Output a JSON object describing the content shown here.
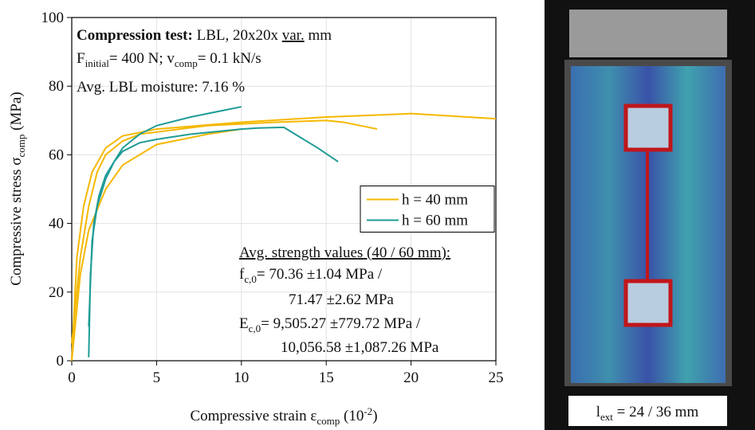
{
  "chart_data": {
    "type": "line",
    "ylabel": {
      "main": "Compressive stress σ",
      "sub": "comp",
      "unit": " (MPa)"
    },
    "xlabel": {
      "main": "Compressive strain ε",
      "sub": "comp",
      "unit": " (10",
      "sup": "-2",
      "close": ")"
    },
    "xlim": [
      0,
      25
    ],
    "xticks": [
      0,
      5,
      10,
      15,
      20,
      25
    ],
    "ylim": [
      0,
      100
    ],
    "yticks": [
      0,
      20,
      40,
      60,
      80,
      100
    ],
    "grid": true,
    "legend": "center right",
    "series": [
      {
        "name": "h = 40 mm",
        "color": "#f5b800",
        "curves": [
          {
            "x": [
              0,
              0.3,
              0.7,
              1.2,
              2,
              3,
              5,
              10,
              15,
              20,
              25
            ],
            "values": [
              0,
              30,
              45,
              55,
              62,
              65.5,
              67.5,
              69.5,
              71,
              72,
              70.5
            ]
          },
          {
            "x": [
              0,
              0.5,
              1,
              1.5,
              2,
              3,
              4,
              8,
              12,
              15,
              16,
              18
            ],
            "values": [
              5,
              30,
              45,
              55,
              60,
              64,
              66,
              68.5,
              69.5,
              70,
              69.5,
              67.5
            ]
          },
          {
            "x": [
              0,
              0.5,
              1,
              2,
              3,
              5,
              8,
              10
            ],
            "values": [
              0,
              25,
              38,
              50,
              57,
              63,
              66,
              67.5
            ]
          }
        ]
      },
      {
        "name": "h = 60 mm",
        "color": "#1f9c96",
        "curves": [
          {
            "x": [
              1,
              1.1,
              1.3,
              1.6,
              2,
              2.5,
              3,
              4,
              5,
              7,
              9,
              10,
              11,
              12.5,
              13.5,
              14.5,
              15.7
            ],
            "values": [
              1,
              25,
              40,
              48,
              54,
              58,
              61,
              63.5,
              64.5,
              66,
              67,
              67.5,
              67.8,
              68,
              65,
              62,
              58
            ]
          },
          {
            "x": [
              1,
              1.2,
              1.5,
              2,
              2.5,
              3,
              4,
              5,
              7,
              9,
              10
            ],
            "values": [
              10,
              35,
              45,
              53,
              58,
              62,
              66,
              68.5,
              71,
              73,
              74
            ]
          }
        ]
      }
    ],
    "annotations": {
      "line1": {
        "bold": "Compression test:",
        "rest": " LBL, 20x20x ",
        "underline": "var.",
        "end": " mm"
      },
      "line2": {
        "a": "F",
        "a_sub": "initial",
        "b": "= 400 N; v",
        "b_sub": "comp",
        "c": "= 0.1 kN/s"
      },
      "line3": "Avg. LBL moisture: 7.16 %",
      "strength_title": "Avg. strength values (40 / 60 mm):",
      "f": {
        "sym": "f",
        "sub": "c,0",
        "text": "= 70.36 ±1.04 MPa /",
        "text2": "71.47 ±2.62 MPa"
      },
      "e": {
        "sym": "E",
        "sub": "c,0",
        "text": "= 9,505.27 ±779.72 MPa /",
        "text2": "10,056.58 ±1,087.26 MPa"
      }
    }
  },
  "image": {
    "caption": {
      "sym": "l",
      "sub": "ext",
      "text": " = 24 / 36 mm"
    }
  }
}
